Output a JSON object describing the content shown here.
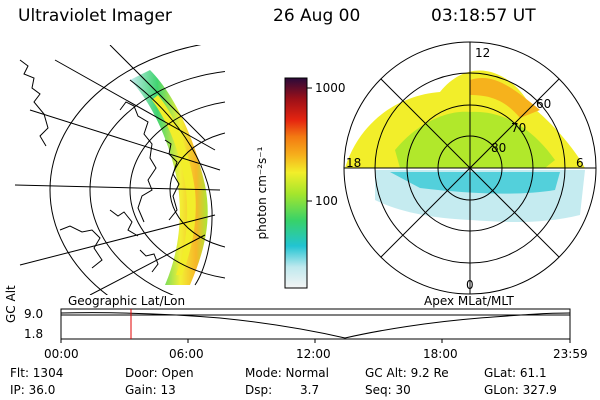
{
  "header": {
    "instrument": "Ultraviolet Imager",
    "date": "26 Aug 00",
    "time": "03:18:57 UT"
  },
  "geo_panel": {
    "caption": "Geographic Lat/Lon"
  },
  "apex_panel": {
    "caption": "Apex MLat/MLT",
    "mlt_labels": [
      "12",
      "18",
      "6",
      "0"
    ],
    "lat_labels": [
      "60",
      "70",
      "80"
    ]
  },
  "colorbar": {
    "unit_label": "photon cm⁻²s⁻¹",
    "ticks": [
      "1000",
      "100"
    ],
    "scale": "log",
    "colors": [
      "#f4f4f4",
      "#bfe9ee",
      "#22c4d2",
      "#37d26a",
      "#a6e62c",
      "#f2ee2a",
      "#f6b21c",
      "#f37a12",
      "#e52410",
      "#9c1018",
      "#2a0a3a"
    ]
  },
  "alt_plot": {
    "ylabel": "GC Alt",
    "y_ticks": [
      "9.0",
      "1.8"
    ],
    "x_ticks": [
      "00:00",
      "06:00",
      "12:00",
      "18:00",
      "23:59"
    ],
    "current_time_marker": "03:18",
    "marker_color": "#e00000"
  },
  "status": {
    "flt": "Flt: 1304",
    "ip": "IP: 36.0",
    "door": "Door: Open",
    "gain": "Gain: 13",
    "mode": "Mode: Normal",
    "dsp_label": "Dsp:",
    "dsp_value": "3.7",
    "gc_alt": "GC Alt: 9.2 Re",
    "seq": "Seq: 30",
    "glat": "GLat:  61.1",
    "glon": "GLon: 327.9"
  }
}
